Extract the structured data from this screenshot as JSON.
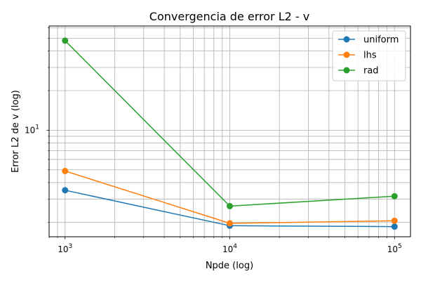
{
  "chart_data": {
    "type": "line",
    "title": "Convergencia de error L2 - v",
    "xlabel": "Npde (log)",
    "ylabel": "Error L2 de v (log)",
    "xscale": "log",
    "yscale": "log",
    "x": [
      1000,
      10000,
      100000
    ],
    "xlim": [
      800,
      125000
    ],
    "ylim": [
      1.55,
      62
    ],
    "x_tick_labels": [
      {
        "base": "10",
        "exp": "3"
      },
      {
        "base": "10",
        "exp": "4"
      },
      {
        "base": "10",
        "exp": "5"
      }
    ],
    "y_tick_labels": [
      "10"
    ],
    "y_tick_label_exponent": "1",
    "grid": true,
    "legend_position": "top-right",
    "series": [
      {
        "name": "uniform",
        "color": "#1f77b4",
        "values": [
          3.5,
          1.88,
          1.85
        ]
      },
      {
        "name": "lhs",
        "color": "#ff7f0e",
        "values": [
          4.9,
          1.96,
          2.05
        ]
      },
      {
        "name": "rad",
        "color": "#2ca02c",
        "values": [
          48,
          2.65,
          3.15
        ]
      }
    ]
  }
}
